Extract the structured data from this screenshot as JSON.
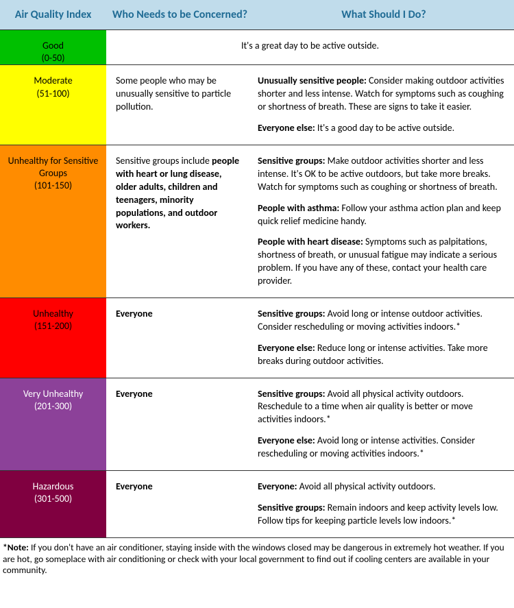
{
  "header": {
    "bg": "#c0dceb",
    "fg": "#1f6b94",
    "col1": "Air Quality Index",
    "col2": "Who Needs to be Concerned?",
    "col3": "What Should I Do?"
  },
  "rows": [
    {
      "label": "Good",
      "range": "(0-50)",
      "bg": "#00c000",
      "fg": "#000000",
      "spansTwo": true,
      "concernText": "",
      "action_html": "It's a great day to be active outside."
    },
    {
      "label": "Moderate",
      "range": "(51-100)",
      "bg": "#ffff00",
      "fg": "#000000",
      "spansTwo": false,
      "concern_html": "Some people who may be unusually sensitive to particle pollution.",
      "action_html": "<p><b>Unusually sensitive people:</b> Consider making outdoor activities shorter and less intense. Watch for symptoms such as coughing or shortness of breath. These are signs to take it easier.</p><p><b>Everyone else:</b> It's a good day to be active outside.</p>"
    },
    {
      "label": "Unhealthy for Sensitive Groups",
      "range": "(101-150)",
      "bg": "#ff8c00",
      "fg": "#000000",
      "spansTwo": false,
      "concern_html": "Sensitive groups include <b>people with heart or lung disease, older adults, children and teenagers, minority populations, and outdoor workers.</b>",
      "action_html": "<p><b>Sensitive groups:</b> Make outdoor activities shorter and less intense. It's OK to be active outdoors, but take more breaks. Watch for symptoms such as coughing or shortness of breath.</p><p><b>People with asthma:</b> Follow your asthma action plan and keep quick relief medicine handy.</p><p><b>People with heart disease:</b> Symptoms such as palpitations, shortness of breath, or unusual fatigue may indicate a serious problem. If you have any of these, contact your health care provider.</p>"
    },
    {
      "label": "Unhealthy",
      "range": "(151-200)",
      "bg": "#ff0000",
      "fg": "#000000",
      "spansTwo": false,
      "concern_html": "<b>Everyone</b>",
      "action_html": "<p><b>Sensitive groups:</b> Avoid long or intense outdoor activities. Consider rescheduling or moving activities indoors.*</p><p><b>Everyone else:</b> Reduce long or intense activities. Take more breaks during outdoor activities.</p>"
    },
    {
      "label": "Very Unhealthy",
      "range": "(201-300)",
      "bg": "#8c4199",
      "fg": "#ffffff",
      "spansTwo": false,
      "concern_html": "<b>Everyone</b>",
      "action_html": "<p><b>Sensitive groups:</b> Avoid all physical activity outdoors. Reschedule to a time when air quality is better or move activities indoors.*</p><p><b>Everyone else:</b> Avoid long or intense activities. Consider rescheduling or moving activities indoors.*</p>"
    },
    {
      "label": "Hazardous",
      "range": "(301-500)",
      "bg": "#800040",
      "fg": "#ffffff",
      "spansTwo": false,
      "concern_html": "<b>Everyone</b>",
      "action_html": "<p><b>Everyone:</b> Avoid all physical activity outdoors.</p><p><b>Sensitive groups:</b> Remain indoors and keep activity levels low. Follow tips for keeping particle levels low indoors.*</p>"
    }
  ],
  "footnote_html": "<b>*Note:</b> If you don't have an air conditioner, staying inside with the windows closed may be dangerous in extremely hot weather. If you are hot, go someplace with air conditioning or check with your local government to find out if cooling centers are available in your community."
}
